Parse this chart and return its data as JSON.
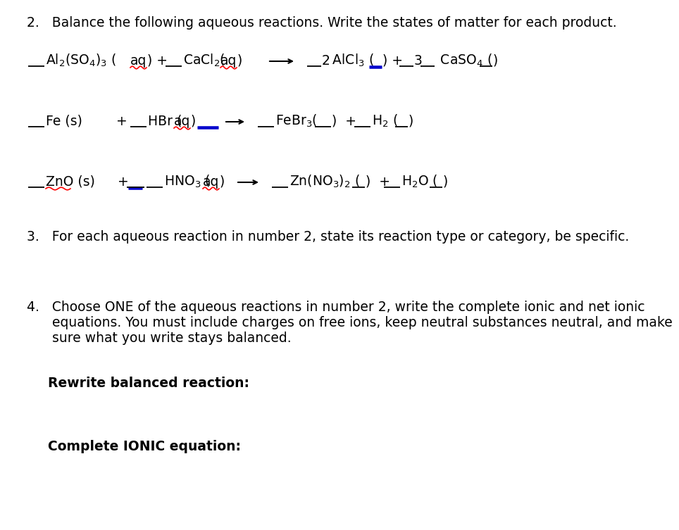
{
  "bg_color": "#ffffff",
  "text_color": "#000000",
  "red_color": "#cc0000",
  "blue_color": "#0000cc",
  "header2": "2.   Balance the following aqueous reactions. Write the states of matter for each product.",
  "item3": "3.   For each aqueous reaction in number 2, state its reaction type or category, be specific.",
  "item4_l1": "4.   Choose ONE of the aqueous reactions in number 2, write the complete ionic and net ionic",
  "item4_l2": "      equations. You must include charges on free ions, keep neutral substances neutral, and make",
  "item4_l3": "      sure what you write stays balanced.",
  "rewrite_label": "Rewrite balanced reaction:",
  "ionic_label": "Complete IONIC equation:",
  "fs": 13.5,
  "fs_sub": 9.5
}
